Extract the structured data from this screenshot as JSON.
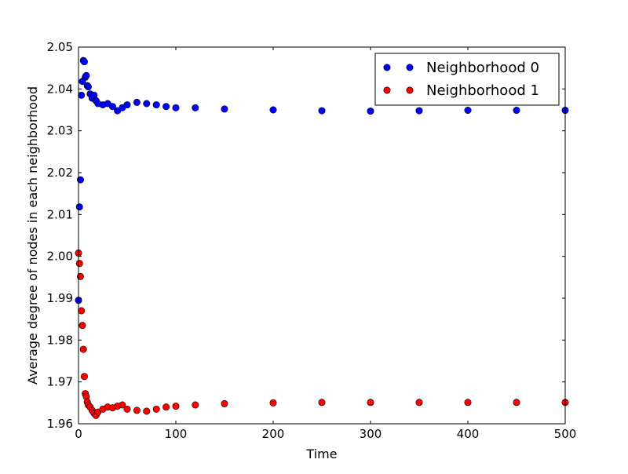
{
  "chart_data": {
    "type": "scatter",
    "title": "",
    "xlabel": "Time",
    "ylabel": "Average degree of nodes in each neighborhood",
    "xlim": [
      0,
      500
    ],
    "ylim": [
      1.96,
      2.05
    ],
    "x_ticks": [
      0,
      100,
      200,
      300,
      400,
      500
    ],
    "x_tick_labels": [
      "0",
      "100",
      "200",
      "300",
      "400",
      "500"
    ],
    "y_ticks": [
      1.96,
      1.97,
      1.98,
      1.99,
      2.0,
      2.01,
      2.02,
      2.03,
      2.04,
      2.05
    ],
    "y_tick_labels": [
      "1.96",
      "1.97",
      "1.98",
      "1.99",
      "2.00",
      "2.01",
      "2.02",
      "2.03",
      "2.04",
      "2.05"
    ],
    "grid": false,
    "legend_position": "top-right",
    "series": [
      {
        "name": "Neighborhood 0",
        "color": "#0000ff",
        "x": [
          0,
          1,
          2,
          3,
          4,
          5,
          6,
          7,
          8,
          9,
          10,
          12,
          14,
          16,
          18,
          20,
          25,
          30,
          35,
          40,
          45,
          50,
          60,
          70,
          80,
          90,
          100,
          120,
          150,
          200,
          250,
          300,
          350,
          400,
          450,
          500
        ],
        "y": [
          1.9895,
          2.0118,
          2.0183,
          2.0385,
          2.0418,
          2.0468,
          2.0465,
          2.0428,
          2.0432,
          2.0408,
          2.0405,
          2.0388,
          2.0378,
          2.0385,
          2.0372,
          2.0365,
          2.0362,
          2.0365,
          2.0358,
          2.0348,
          2.0355,
          2.0362,
          2.0368,
          2.0365,
          2.0362,
          2.0358,
          2.0355,
          2.0355,
          2.0352,
          2.035,
          2.0348,
          2.0347,
          2.0348,
          2.0349,
          2.0349,
          2.0349
        ]
      },
      {
        "name": "Neighborhood 1",
        "color": "#ff0000",
        "x": [
          0,
          1,
          2,
          3,
          4,
          5,
          6,
          7,
          8,
          9,
          10,
          12,
          14,
          16,
          18,
          20,
          25,
          30,
          35,
          40,
          45,
          50,
          60,
          70,
          80,
          90,
          100,
          120,
          150,
          200,
          250,
          300,
          350,
          400,
          450,
          500
        ],
        "y": [
          2.0008,
          1.9983,
          1.9952,
          1.987,
          1.9835,
          1.9778,
          1.9713,
          1.9672,
          1.9665,
          1.9652,
          1.9645,
          1.964,
          1.9632,
          1.9625,
          1.962,
          1.9628,
          1.9635,
          1.964,
          1.9638,
          1.9642,
          1.9645,
          1.9635,
          1.9632,
          1.963,
          1.9635,
          1.964,
          1.9642,
          1.9645,
          1.9648,
          1.965,
          1.9651,
          1.9651,
          1.9651,
          1.9651,
          1.9651,
          1.9651
        ]
      }
    ]
  }
}
